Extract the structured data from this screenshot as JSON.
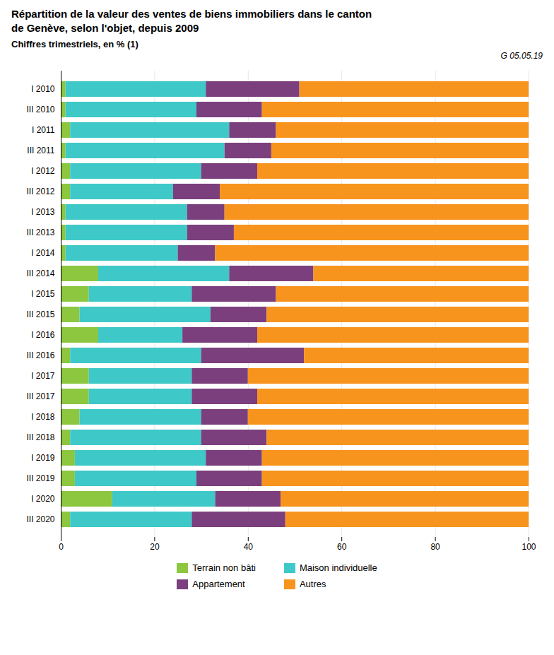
{
  "chart_data": {
    "type": "bar",
    "orientation": "horizontal",
    "stacked": true,
    "title": "Répartition de la valeur des ventes de biens immobiliers dans le canton\nde Genève, selon l'objet, depuis 2009",
    "subtitle": "Chiffres trimestriels, en % (1)",
    "annotations": [
      "G 05.05.19"
    ],
    "categories": [
      "I 2010",
      "III 2010",
      "I 2011",
      "III 2011",
      "I 2012",
      "III 2012",
      "I 2013",
      "III 2013",
      "I 2014",
      "III 2014",
      "I 2015",
      "III 2015",
      "I 2016",
      "III 2016",
      "I 2017",
      "III 2017",
      "I 2018",
      "III 2018",
      "I 2019",
      "III 2019",
      "I 2020",
      "III 2020"
    ],
    "series": [
      {
        "name": "Terrain non bâti",
        "color": "#8dc63f",
        "values": [
          1,
          1,
          2,
          1,
          2,
          2,
          1,
          1,
          1,
          8,
          6,
          4,
          8,
          2,
          6,
          6,
          4,
          2,
          3,
          3,
          11,
          2
        ]
      },
      {
        "name": "Maison individuelle",
        "color": "#3ec8c8",
        "values": [
          30,
          28,
          34,
          34,
          28,
          22,
          26,
          26,
          24,
          28,
          22,
          28,
          18,
          28,
          22,
          22,
          26,
          28,
          28,
          26,
          22,
          26
        ]
      },
      {
        "name": "Appartement",
        "color": "#7b3f7d",
        "values": [
          20,
          14,
          10,
          10,
          12,
          10,
          8,
          10,
          8,
          18,
          18,
          12,
          16,
          22,
          12,
          14,
          10,
          14,
          12,
          14,
          14,
          20
        ]
      },
      {
        "name": "Autres",
        "color": "#f7941d",
        "values": [
          49,
          57,
          54,
          55,
          58,
          66,
          65,
          63,
          67,
          46,
          54,
          56,
          58,
          48,
          60,
          58,
          60,
          56,
          57,
          57,
          53,
          52
        ]
      }
    ],
    "xlim": [
      0,
      100
    ],
    "xticks": [
      0,
      20,
      40,
      60,
      80,
      100
    ],
    "grid": true,
    "legend": "bottom"
  }
}
